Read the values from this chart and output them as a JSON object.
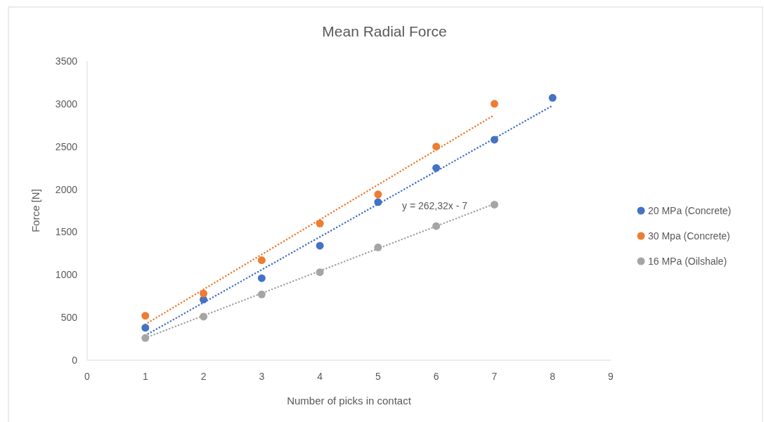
{
  "chart_data": {
    "type": "scatter",
    "title": "Mean Radial Force",
    "xlabel": "Number of picks in contact",
    "ylabel": "Force [N]",
    "xlim": [
      0,
      9
    ],
    "xticks": [
      0,
      1,
      2,
      3,
      4,
      5,
      6,
      7,
      8,
      9
    ],
    "ylim": [
      0,
      3500
    ],
    "yticks": [
      0,
      500,
      1000,
      1500,
      2000,
      2500,
      3000,
      3500
    ],
    "legend": "right",
    "marker": "circle",
    "annotations": [
      "y = 262,32x - 7"
    ],
    "series": [
      {
        "name": "20 MPa (Concrete)",
        "color": "#4472c4",
        "x": [
          1,
          2,
          3,
          4,
          5,
          6,
          7,
          8
        ],
        "values": [
          380,
          710,
          960,
          1340,
          1850,
          2250,
          2580,
          3070
        ]
      },
      {
        "name": "30 Mpa (Concrete)",
        "color": "#ed7d31",
        "x": [
          1,
          2,
          3,
          4,
          5,
          6,
          7
        ],
        "values": [
          520,
          780,
          1170,
          1600,
          1940,
          2500,
          3000
        ]
      },
      {
        "name": "16 MPa (Oilshale)",
        "color": "#a5a5a5",
        "x": [
          1,
          2,
          3,
          4,
          5,
          6,
          7
        ],
        "values": [
          260,
          510,
          770,
          1030,
          1320,
          1570,
          1820
        ]
      },
      {
        "type": "line",
        "color": "#4472c4",
        "line_style": "dotted",
        "marker": "none",
        "x": [
          1,
          8
        ],
        "values": [
          290,
          2980
        ]
      },
      {
        "type": "line",
        "color": "#ed7d31",
        "line_style": "dotted",
        "marker": "none",
        "x": [
          1,
          7
        ],
        "values": [
          420,
          2870
        ]
      },
      {
        "type": "line",
        "color": "#a5a5a5",
        "line_style": "dotted",
        "marker": "none",
        "x": [
          1,
          7
        ],
        "values": [
          260,
          1830
        ]
      }
    ]
  }
}
